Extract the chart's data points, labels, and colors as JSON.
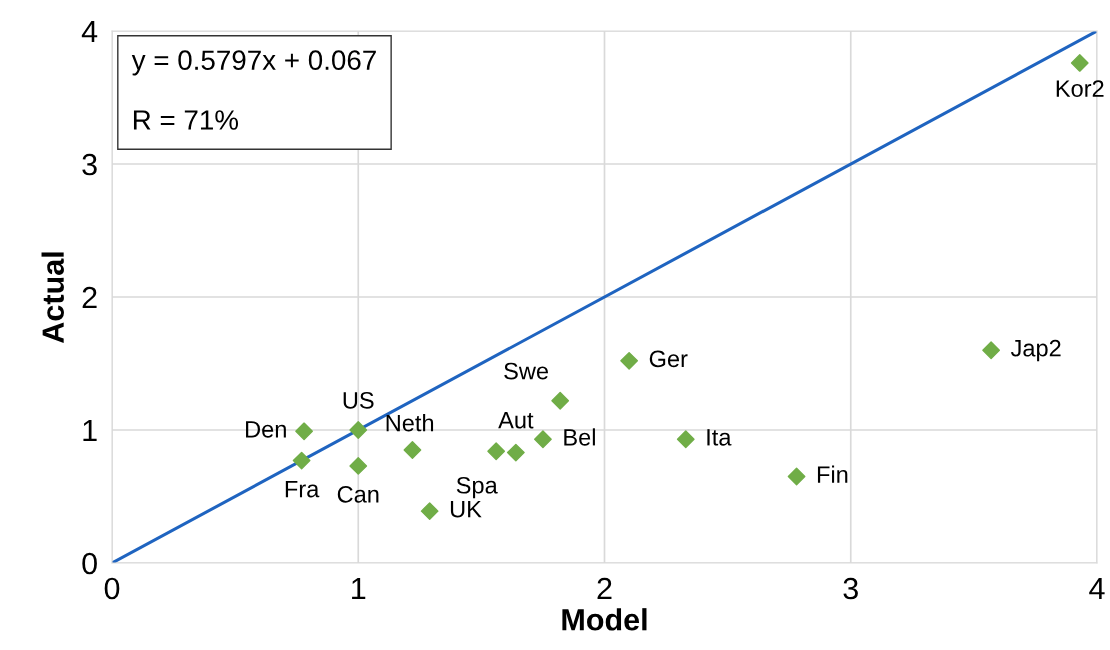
{
  "chart_data": {
    "type": "scatter",
    "xlabel": "Model",
    "ylabel": "Actual",
    "xlim": [
      0,
      4
    ],
    "ylim": [
      0,
      4
    ],
    "xticks": [
      0,
      1,
      2,
      3,
      4
    ],
    "yticks": [
      0,
      1,
      2,
      3,
      4
    ],
    "grid": true,
    "x": [
      0.78,
      0.77,
      1.0,
      1.0,
      1.22,
      1.29,
      1.56,
      1.64,
      1.75,
      1.82,
      2.1,
      2.33,
      2.78,
      3.57,
      3.93
    ],
    "series": [
      {
        "color": "#70ad47",
        "marker": "diamond",
        "values": [
          0.99,
          0.77,
          1.0,
          0.73,
          0.85,
          0.39,
          0.84,
          0.83,
          0.93,
          1.22,
          1.52,
          0.93,
          0.65,
          1.6,
          3.76
        ]
      },
      {
        "type": "line",
        "color": "#1f64c0",
        "x": [
          0,
          4
        ],
        "values": [
          0,
          4
        ]
      }
    ],
    "annotations": [
      "y = 0.5797x + 0.067",
      "R = 71%",
      {
        "text": "Den",
        "x": 0.78,
        "y": 0.99
      },
      {
        "text": "Fra",
        "x": 0.77,
        "y": 0.77
      },
      {
        "text": "US",
        "x": 1.0,
        "y": 1.0
      },
      {
        "text": "Can",
        "x": 1.0,
        "y": 0.73
      },
      {
        "text": "Neth",
        "x": 1.22,
        "y": 0.85
      },
      {
        "text": "UK",
        "x": 1.29,
        "y": 0.39
      },
      {
        "text": "Spa",
        "x": 1.56,
        "y": 0.84
      },
      {
        "text": "Aut",
        "x": 1.64,
        "y": 0.83
      },
      {
        "text": "Bel",
        "x": 1.75,
        "y": 0.93
      },
      {
        "text": "Swe",
        "x": 1.82,
        "y": 1.22
      },
      {
        "text": "Ger",
        "x": 2.1,
        "y": 1.52
      },
      {
        "text": "Ita",
        "x": 2.33,
        "y": 0.93
      },
      {
        "text": "Fin",
        "x": 2.78,
        "y": 0.65
      },
      {
        "text": "Jap2",
        "x": 3.57,
        "y": 1.6
      },
      {
        "text": "Kor2",
        "x": 3.93,
        "y": 3.76
      }
    ]
  }
}
